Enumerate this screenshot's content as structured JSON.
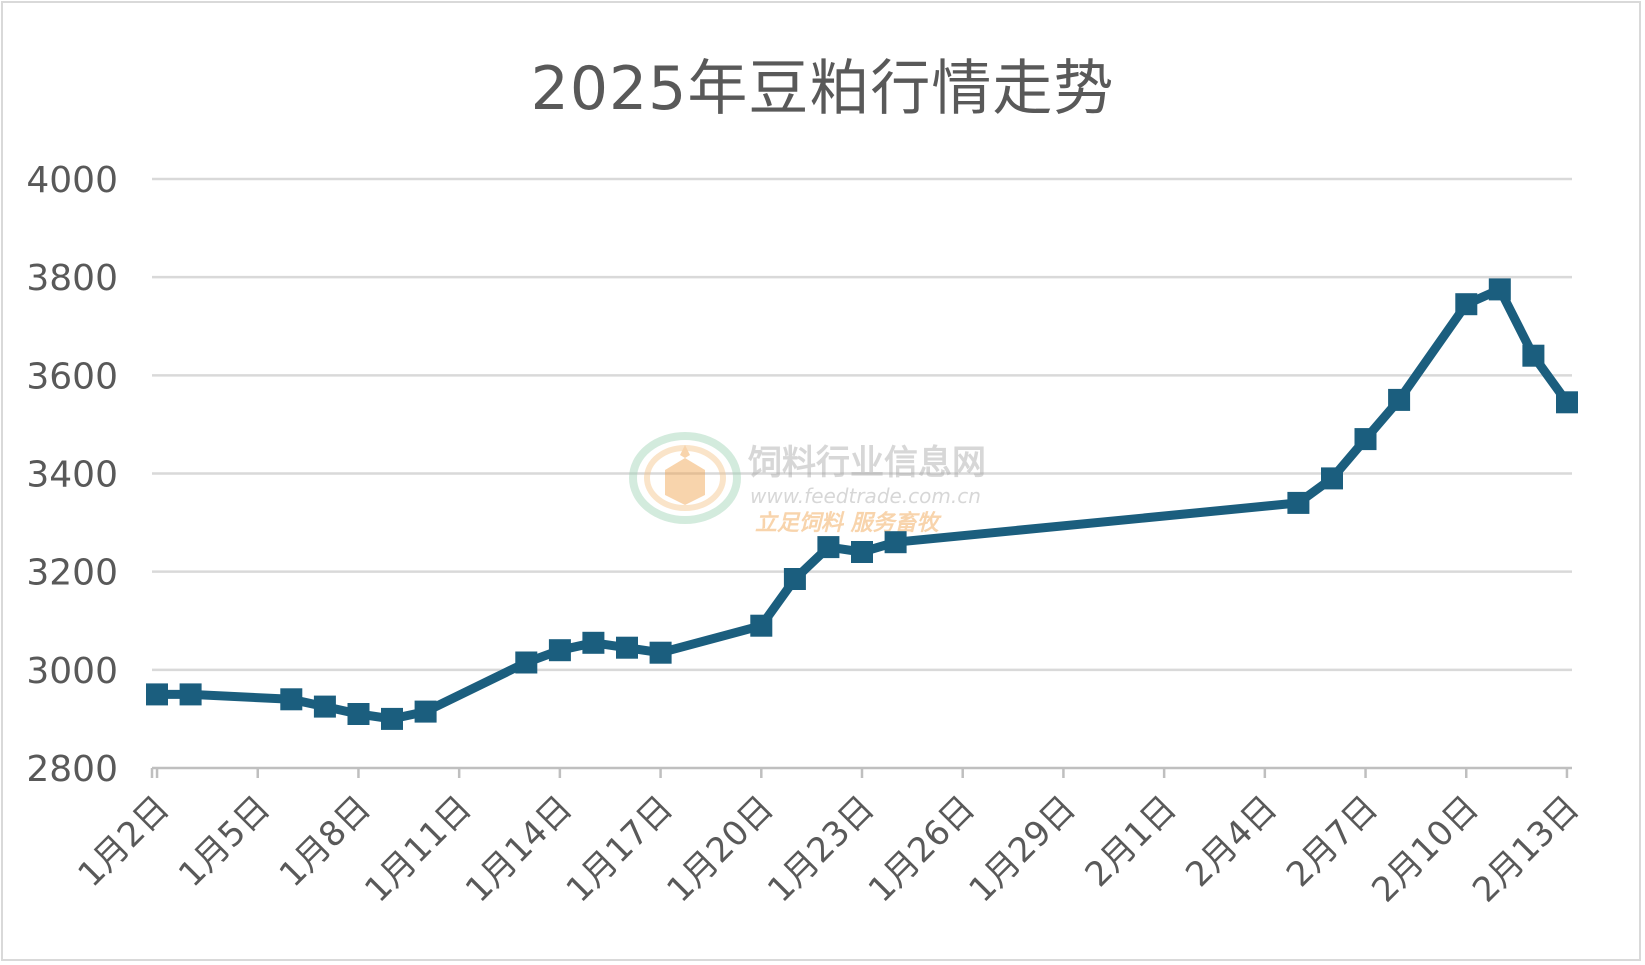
{
  "chart_data": {
    "type": "line",
    "title": "2025年豆粕行情走势",
    "xlabel": "",
    "ylabel": "",
    "ylim": [
      2800,
      4000
    ],
    "yticks": [
      2800,
      3000,
      3200,
      3400,
      3600,
      3800,
      4000
    ],
    "grid": true,
    "x_start": "2025-01-02",
    "x_end": "2025-02-13",
    "x_tick_labels": [
      "1月2日",
      "1月5日",
      "1月8日",
      "1月11日",
      "1月14日",
      "1月17日",
      "1月20日",
      "1月23日",
      "1月26日",
      "1月29日",
      "2月1日",
      "2月4日",
      "2月7日",
      "2月10日",
      "2月13日"
    ],
    "color": "#1b5e7e",
    "series": [
      {
        "name": "",
        "points": [
          {
            "x": "2025-01-02",
            "y": 2950
          },
          {
            "x": "2025-01-03",
            "y": 2950
          },
          {
            "x": "2025-01-06",
            "y": 2940
          },
          {
            "x": "2025-01-07",
            "y": 2925
          },
          {
            "x": "2025-01-08",
            "y": 2910
          },
          {
            "x": "2025-01-09",
            "y": 2900
          },
          {
            "x": "2025-01-10",
            "y": 2915
          },
          {
            "x": "2025-01-13",
            "y": 3015
          },
          {
            "x": "2025-01-14",
            "y": 3040
          },
          {
            "x": "2025-01-15",
            "y": 3055
          },
          {
            "x": "2025-01-16",
            "y": 3045
          },
          {
            "x": "2025-01-17",
            "y": 3035
          },
          {
            "x": "2025-01-20",
            "y": 3090
          },
          {
            "x": "2025-01-21",
            "y": 3185
          },
          {
            "x": "2025-01-22",
            "y": 3250
          },
          {
            "x": "2025-01-23",
            "y": 3240
          },
          {
            "x": "2025-01-24",
            "y": 3260
          },
          {
            "x": "2025-02-05",
            "y": 3340
          },
          {
            "x": "2025-02-06",
            "y": 3390
          },
          {
            "x": "2025-02-07",
            "y": 3470
          },
          {
            "x": "2025-02-08",
            "y": 3550
          },
          {
            "x": "2025-02-10",
            "y": 3745
          },
          {
            "x": "2025-02-11",
            "y": 3775
          },
          {
            "x": "2025-02-12",
            "y": 3640
          },
          {
            "x": "2025-02-13",
            "y": 3545
          }
        ]
      }
    ]
  },
  "watermark": {
    "name": "饲料行业信息网",
    "url": "www.feedtrade.com.cn",
    "slogan": "立足饲料  服务畜牧"
  }
}
